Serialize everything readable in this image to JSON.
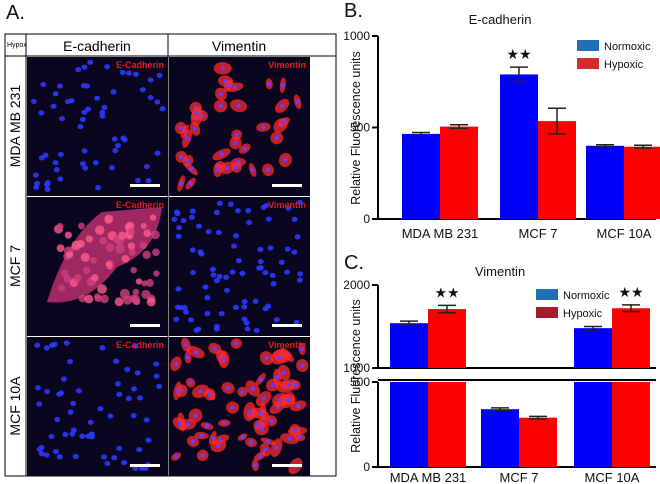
{
  "figure": {
    "panel_a": {
      "letter": "A.",
      "corner_label": "Hypox",
      "column_headers": [
        "E-cadherin",
        "Vimentin"
      ],
      "row_labels": [
        "MDA MB 231",
        "MCF 7",
        "MCF 10A"
      ],
      "cells": [
        [
          {
            "stain": "E-Cadherin",
            "pattern": "sparse-nuclei"
          },
          {
            "stain": "Vimentin",
            "pattern": "spread-cells"
          }
        ],
        [
          {
            "stain": "E-Cadherin",
            "pattern": "cluster"
          },
          {
            "stain": "Vimentin",
            "pattern": "dense-nuclei"
          }
        ],
        [
          {
            "stain": "E-Cadherin",
            "pattern": "sparse-nuclei"
          },
          {
            "stain": "Vimentin",
            "pattern": "confluent-cells"
          }
        ]
      ],
      "colors": {
        "nuclei": "#2a3aff",
        "stain": "#ff2a2a",
        "background": "#0a0620",
        "stain_label": "#e41818"
      }
    },
    "panel_b": {
      "letter": "B."
    },
    "panel_c": {
      "letter": "C."
    }
  },
  "chart_data": [
    {
      "type": "bar",
      "title": "E-cadherin",
      "ylabel": "Relative Fluorescence units",
      "xlabel": "",
      "categories": [
        "MDA MB 231",
        "MCF 7",
        "MCF 10A"
      ],
      "series": [
        {
          "name": "Normoxic",
          "color": "#0000ff",
          "values": [
            465,
            790,
            400
          ],
          "errors": [
            8,
            40,
            6
          ]
        },
        {
          "name": "Hypoxic",
          "color": "#ff0000",
          "values": [
            505,
            535,
            395
          ],
          "errors": [
            10,
            70,
            8
          ]
        }
      ],
      "ylim": [
        0,
        1000
      ],
      "yticks": [
        "0",
        "500",
        "1000"
      ],
      "significance": [
        {
          "category": 1,
          "series": 0,
          "label": "★★"
        }
      ],
      "legend_position": "top-right",
      "legend_swatch_colors": [
        "#1f6fb8",
        "#d42a30"
      ]
    },
    {
      "type": "bar",
      "title": "Vimentin",
      "ylabel": "Relative Fluorescence units",
      "xlabel": "",
      "categories": [
        "MDA MB 231",
        "MCF 7",
        "MCF 10A"
      ],
      "series": [
        {
          "name": "Normoxic",
          "color": "#0000ff",
          "values": [
            1540,
            340,
            1480
          ],
          "errors": [
            25,
            8,
            20
          ]
        },
        {
          "name": "Hypoxic",
          "color": "#ff0000",
          "values": [
            1710,
            290,
            1720
          ],
          "errors": [
            45,
            8,
            40
          ]
        }
      ],
      "axis_break": {
        "lower_range": [
          0,
          500
        ],
        "upper_range": [
          1000,
          2000
        ]
      },
      "yticks": [
        "0",
        "500",
        "1000",
        "2000"
      ],
      "significance": [
        {
          "category": 0,
          "series": 1,
          "label": "★★"
        },
        {
          "category": 2,
          "series": 1,
          "label": "★★"
        }
      ],
      "legend_position": "top-right",
      "legend_swatch_colors": [
        "#1f6fb8",
        "#a51c2b"
      ]
    }
  ]
}
